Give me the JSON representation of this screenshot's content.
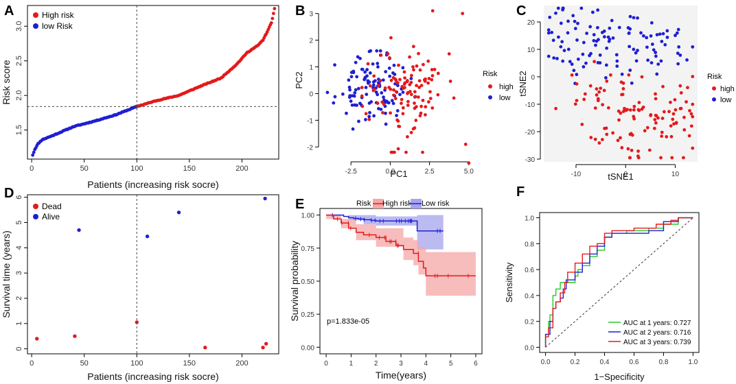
{
  "figure": {
    "panel_letters": [
      "A",
      "B",
      "C",
      "D",
      "E",
      "F"
    ]
  },
  "colors": {
    "red": "#e31a1c",
    "blue": "#1f1fd1",
    "green": "#22cc22",
    "pink": "#f4a6a6",
    "lightblue": "#a4a4ee"
  },
  "chart_data": [
    {
      "panel": "A",
      "type": "scatter",
      "xlabel": "Patients (increasing risk socre)",
      "ylabel": "Risk score",
      "xlim": [
        -4,
        235
      ],
      "ylim": [
        1.08,
        3.3
      ],
      "xticks": [
        0,
        50,
        100,
        150,
        200
      ],
      "xtick_labels": [
        "0",
        "50",
        "100",
        "150",
        "200"
      ],
      "yticks": [
        1.5,
        2.0,
        2.5,
        3.0
      ],
      "ytick_labels": [
        "1.5",
        "2.0",
        "2.5",
        "3.0"
      ],
      "legend": [
        "High risk",
        "low Risk"
      ],
      "legend_position": "top-left",
      "cutoff_x": 100,
      "cutoff_y": 1.84,
      "curve_knots": [
        [
          1,
          1.14
        ],
        [
          3,
          1.22
        ],
        [
          6,
          1.3
        ],
        [
          10,
          1.36
        ],
        [
          20,
          1.42
        ],
        [
          40,
          1.55
        ],
        [
          60,
          1.63
        ],
        [
          80,
          1.72
        ],
        [
          100,
          1.84
        ],
        [
          120,
          1.93
        ],
        [
          140,
          2.0
        ],
        [
          160,
          2.13
        ],
        [
          180,
          2.25
        ],
        [
          195,
          2.45
        ],
        [
          205,
          2.62
        ],
        [
          215,
          2.72
        ],
        [
          220,
          2.8
        ],
        [
          225,
          2.95
        ],
        [
          228,
          3.05
        ],
        [
          231,
          3.25
        ]
      ],
      "n_points": 231
    },
    {
      "panel": "B",
      "type": "scatter",
      "xlabel": "PC1",
      "ylabel": "PC2",
      "xlim": [
        -4.3,
        5.4
      ],
      "ylim": [
        -2.3,
        3.3
      ],
      "xticks": [
        -2.5,
        0.0,
        2.5,
        5.0
      ],
      "xtick_labels": [
        "-2.5",
        "0.0",
        "2.5",
        "5.0"
      ],
      "yticks": [
        -2,
        -1,
        0,
        1,
        2,
        3
      ],
      "ytick_labels": [
        "-2",
        "-1",
        "0",
        "1",
        "2",
        "3"
      ],
      "legend_title": "Risk",
      "legend": [
        "high",
        "low"
      ],
      "legend_position": "right",
      "low_cloud": {
        "cx": -1.2,
        "cy": 0.2,
        "sx": 1.1,
        "sy": 0.6,
        "n": 115
      },
      "high_cloud": {
        "cx": 0.9,
        "cy": 0.0,
        "sx": 1.3,
        "sy": 1.0,
        "n": 116
      },
      "high_extra": [
        [
          5.0,
          -2.6
        ],
        [
          4.6,
          3.0
        ],
        [
          2.7,
          3.1
        ],
        [
          4.8,
          -1.9
        ]
      ]
    },
    {
      "panel": "C",
      "type": "scatter",
      "xlabel": "tSNE1",
      "ylabel": "tSNE2",
      "xlim": [
        -16.5,
        14.5
      ],
      "ylim": [
        -31,
        26
      ],
      "xticks": [
        -10,
        0,
        10
      ],
      "xtick_labels": [
        "-10",
        "0",
        "10"
      ],
      "yticks": [
        -30,
        -20,
        -10,
        0,
        10,
        20
      ],
      "ytick_labels": [
        "-30",
        "-20",
        "-10",
        "0",
        "10",
        "20"
      ],
      "legend_title": "Risk",
      "legend": [
        "high",
        "low"
      ],
      "legend_position": "right",
      "clusters": [
        {
          "group": "low",
          "cx": -8,
          "cy": 13,
          "sx": 4.2,
          "sy": 7,
          "n": 70
        },
        {
          "group": "low",
          "cx": 5,
          "cy": 12,
          "sx": 5,
          "sy": 6,
          "n": 45
        },
        {
          "group": "high",
          "cx": 3,
          "cy": -15,
          "sx": 5.5,
          "sy": 8.5,
          "n": 100
        },
        {
          "group": "high",
          "cx": -7,
          "cy": -3,
          "sx": 2,
          "sy": 4,
          "n": 16
        }
      ]
    },
    {
      "panel": "D",
      "type": "scatter",
      "xlabel": "Patients (increasing risk socre)",
      "ylabel": "Survival time (years)",
      "xlim": [
        -4,
        235
      ],
      "ylim": [
        -0.2,
        6.1
      ],
      "xticks": [
        0,
        50,
        100,
        150,
        200
      ],
      "xtick_labels": [
        "0",
        "50",
        "100",
        "150",
        "200"
      ],
      "yticks": [
        0,
        1,
        2,
        3,
        4,
        5,
        6
      ],
      "ytick_labels": [
        "0",
        "1",
        "2",
        "3",
        "4",
        "5",
        "6"
      ],
      "legend": [
        "Dead",
        "Alive"
      ],
      "legend_position": "top-left",
      "cutoff_x": 100,
      "y_range": [
        0.05,
        4.8
      ],
      "dead_rate_low": 0.06,
      "dead_rate_high": 0.24,
      "dead_extra": [
        [
          41,
          0.5
        ],
        [
          5,
          0.4
        ],
        [
          100,
          1.05
        ],
        [
          165,
          0.05
        ],
        [
          220,
          0.05
        ],
        [
          223,
          0.2
        ]
      ],
      "alive_extra": [
        [
          222,
          5.95
        ],
        [
          140,
          5.4
        ],
        [
          45,
          4.7
        ],
        [
          110,
          4.45
        ]
      ]
    },
    {
      "panel": "E",
      "type": "line",
      "xlabel": "Time(years)",
      "ylabel": "Survival probability",
      "xlim": [
        -0.25,
        6.25
      ],
      "ylim": [
        -0.05,
        1.05
      ],
      "xticks": [
        0,
        1,
        2,
        3,
        4,
        5,
        6
      ],
      "xtick_labels": [
        "0",
        "1",
        "2",
        "3",
        "4",
        "5",
        "6"
      ],
      "yticks": [
        0.0,
        0.25,
        0.5,
        0.75,
        1.0
      ],
      "ytick_labels": [
        "0.00",
        "0.25",
        "0.50",
        "0.75",
        "1.00"
      ],
      "legend_title": "Risk",
      "legend": [
        "High risk",
        "Low risk"
      ],
      "legend_position": "top",
      "annotation": "p=1.833e-05",
      "series": [
        {
          "name": "Low risk",
          "steps": [
            [
              0,
              1.0
            ],
            [
              0.7,
              0.99
            ],
            [
              0.9,
              0.98
            ],
            [
              1.1,
              0.975
            ],
            [
              1.3,
              0.97
            ],
            [
              1.5,
              0.965
            ],
            [
              1.8,
              0.96
            ],
            [
              2.0,
              0.955
            ],
            [
              3.6,
              0.955
            ],
            [
              3.65,
              0.88
            ],
            [
              4.7,
              0.88
            ]
          ],
          "ci_upper": [
            [
              0,
              1.0
            ],
            [
              0.9,
              1.0
            ],
            [
              2.0,
              0.99
            ],
            [
              3.6,
              0.99
            ],
            [
              3.65,
              1.0
            ],
            [
              4.7,
              1.0
            ]
          ],
          "ci_lower": [
            [
              0,
              1.0
            ],
            [
              0.9,
              0.96
            ],
            [
              1.5,
              0.93
            ],
            [
              2.0,
              0.92
            ],
            [
              3.6,
              0.92
            ],
            [
              3.65,
              0.74
            ],
            [
              4.7,
              0.74
            ]
          ]
        },
        {
          "name": "High risk",
          "steps": [
            [
              0,
              1.0
            ],
            [
              0.3,
              0.97
            ],
            [
              0.6,
              0.94
            ],
            [
              0.9,
              0.9
            ],
            [
              1.2,
              0.87
            ],
            [
              1.5,
              0.85
            ],
            [
              2.0,
              0.83
            ],
            [
              2.4,
              0.8
            ],
            [
              2.8,
              0.77
            ],
            [
              3.1,
              0.74
            ],
            [
              3.5,
              0.71
            ],
            [
              3.7,
              0.65
            ],
            [
              3.9,
              0.6
            ],
            [
              4.0,
              0.54
            ],
            [
              6.0,
              0.54
            ]
          ],
          "ci_upper": [
            [
              0,
              1.0
            ],
            [
              0.6,
              0.97
            ],
            [
              1.2,
              0.93
            ],
            [
              2.0,
              0.9
            ],
            [
              3.1,
              0.83
            ],
            [
              3.5,
              0.81
            ],
            [
              3.7,
              0.76
            ],
            [
              4.0,
              0.72
            ],
            [
              6.0,
              0.72
            ]
          ],
          "ci_lower": [
            [
              0,
              0.97
            ],
            [
              0.6,
              0.9
            ],
            [
              1.2,
              0.81
            ],
            [
              2.0,
              0.76
            ],
            [
              3.1,
              0.66
            ],
            [
              3.5,
              0.62
            ],
            [
              3.7,
              0.55
            ],
            [
              4.0,
              0.39
            ],
            [
              6.0,
              0.39
            ]
          ]
        }
      ]
    },
    {
      "panel": "F",
      "type": "line",
      "xlabel": "1−Specificity",
      "ylabel": "Sensitivity",
      "xlim": [
        -0.04,
        1.04
      ],
      "ylim": [
        -0.04,
        1.04
      ],
      "xticks": [
        0.0,
        0.2,
        0.4,
        0.6,
        0.8,
        1.0
      ],
      "xtick_labels": [
        "0.0",
        "0.2",
        "0.4",
        "0.6",
        "0.8",
        "1.0"
      ],
      "yticks": [
        0.0,
        0.2,
        0.4,
        0.6,
        0.8,
        1.0
      ],
      "ytick_labels": [
        "0.0",
        "0.2",
        "0.4",
        "0.6",
        "0.8",
        "1.0"
      ],
      "legend_position": "bottom-right",
      "series": [
        {
          "name": "AUC at 1 years: 0.727",
          "color": "#22cc22",
          "points": [
            [
              0,
              0
            ],
            [
              0,
              0.05
            ],
            [
              0.02,
              0.1
            ],
            [
              0.03,
              0.2
            ],
            [
              0.05,
              0.25
            ],
            [
              0.05,
              0.32
            ],
            [
              0.07,
              0.4
            ],
            [
              0.1,
              0.45
            ],
            [
              0.12,
              0.5
            ],
            [
              0.2,
              0.5
            ],
            [
              0.22,
              0.55
            ],
            [
              0.25,
              0.6
            ],
            [
              0.3,
              0.63
            ],
            [
              0.35,
              0.7
            ],
            [
              0.4,
              0.75
            ],
            [
              0.45,
              0.85
            ],
            [
              0.55,
              0.88
            ],
            [
              0.7,
              0.9
            ],
            [
              0.8,
              0.92
            ],
            [
              0.9,
              0.95
            ],
            [
              1,
              1
            ]
          ]
        },
        {
          "name": "AUC at 2 years: 0.716",
          "color": "#1f1fd1",
          "points": [
            [
              0,
              0
            ],
            [
              0,
              0.05
            ],
            [
              0.03,
              0.1
            ],
            [
              0.05,
              0.2
            ],
            [
              0.07,
              0.3
            ],
            [
              0.1,
              0.35
            ],
            [
              0.12,
              0.38
            ],
            [
              0.14,
              0.45
            ],
            [
              0.2,
              0.52
            ],
            [
              0.25,
              0.58
            ],
            [
              0.3,
              0.65
            ],
            [
              0.35,
              0.72
            ],
            [
              0.4,
              0.78
            ],
            [
              0.45,
              0.85
            ],
            [
              0.55,
              0.88
            ],
            [
              0.7,
              0.88
            ],
            [
              0.8,
              0.9
            ],
            [
              0.9,
              0.97
            ],
            [
              1,
              1
            ]
          ]
        },
        {
          "name": "AUC at 3 years: 0.739",
          "color": "#e31a1c",
          "points": [
            [
              0,
              0
            ],
            [
              0.02,
              0.08
            ],
            [
              0.05,
              0.15
            ],
            [
              0.07,
              0.3
            ],
            [
              0.1,
              0.35
            ],
            [
              0.13,
              0.42
            ],
            [
              0.15,
              0.5
            ],
            [
              0.2,
              0.58
            ],
            [
              0.25,
              0.65
            ],
            [
              0.3,
              0.72
            ],
            [
              0.35,
              0.78
            ],
            [
              0.4,
              0.8
            ],
            [
              0.45,
              0.88
            ],
            [
              0.6,
              0.9
            ],
            [
              0.75,
              0.92
            ],
            [
              0.85,
              0.95
            ],
            [
              0.9,
              0.98
            ],
            [
              1,
              1
            ]
          ]
        }
      ]
    }
  ]
}
